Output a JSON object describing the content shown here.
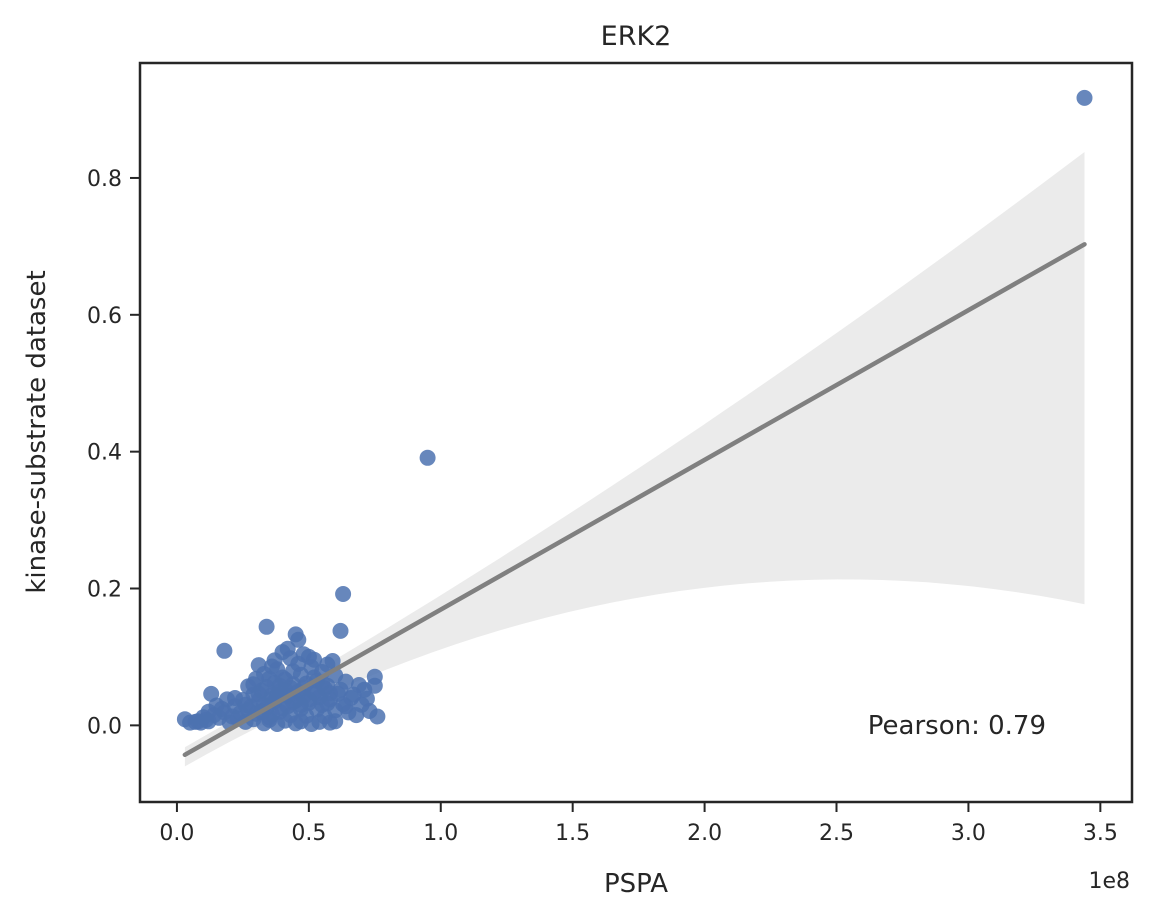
{
  "chart_data": {
    "type": "scatter",
    "title": "ERK2",
    "xlabel": "PSPA",
    "ylabel": "kinase-substrate dataset",
    "x_offset_label": "1e8",
    "x_scale": 100000000,
    "xlim": [
      -0.14,
      3.62
    ],
    "ylim": [
      -0.112,
      0.968
    ],
    "x_ticks": [
      0.0,
      0.5,
      1.0,
      1.5,
      2.0,
      2.5,
      3.0,
      3.5
    ],
    "x_tick_labels": [
      "0.0",
      "0.5",
      "1.0",
      "1.5",
      "2.0",
      "2.5",
      "3.0",
      "3.5"
    ],
    "y_ticks": [
      0.0,
      0.2,
      0.4,
      0.6,
      0.8
    ],
    "y_tick_labels": [
      "0.0",
      "0.2",
      "0.4",
      "0.6",
      "0.8"
    ],
    "annotation": "Pearson: 0.79",
    "grid": false,
    "colors": {
      "points": "#4c72b0",
      "regression_line": "#808080",
      "confidence_band": "#ebebeb",
      "axes": "#262626"
    },
    "regression": {
      "x_start": 0.03,
      "y_start": -0.043,
      "x_end": 3.44,
      "y_end": 0.703,
      "ci_upper_end": 0.838,
      "ci_lower_end": 0.177,
      "ci_upper_start": -0.032,
      "ci_lower_start": -0.06
    },
    "points": [
      [
        3.44,
        0.917
      ],
      [
        0.95,
        0.391
      ],
      [
        0.63,
        0.192
      ],
      [
        0.34,
        0.144
      ],
      [
        0.18,
        0.109
      ],
      [
        0.45,
        0.133
      ],
      [
        0.62,
        0.138
      ],
      [
        0.46,
        0.125
      ],
      [
        0.42,
        0.112
      ],
      [
        0.4,
        0.107
      ],
      [
        0.48,
        0.104
      ],
      [
        0.5,
        0.1
      ],
      [
        0.52,
        0.096
      ],
      [
        0.59,
        0.094
      ],
      [
        0.57,
        0.089
      ],
      [
        0.31,
        0.088
      ],
      [
        0.36,
        0.086
      ],
      [
        0.38,
        0.082
      ],
      [
        0.44,
        0.079
      ],
      [
        0.55,
        0.078
      ],
      [
        0.33,
        0.075
      ],
      [
        0.47,
        0.074
      ],
      [
        0.6,
        0.073
      ],
      [
        0.75,
        0.071
      ],
      [
        0.3,
        0.068
      ],
      [
        0.41,
        0.067
      ],
      [
        0.53,
        0.065
      ],
      [
        0.64,
        0.064
      ],
      [
        0.37,
        0.062
      ],
      [
        0.49,
        0.061
      ],
      [
        0.69,
        0.059
      ],
      [
        0.75,
        0.058
      ],
      [
        0.27,
        0.057
      ],
      [
        0.34,
        0.056
      ],
      [
        0.43,
        0.055
      ],
      [
        0.56,
        0.054
      ],
      [
        0.62,
        0.052
      ],
      [
        0.32,
        0.051
      ],
      [
        0.39,
        0.05
      ],
      [
        0.46,
        0.049
      ],
      [
        0.52,
        0.048
      ],
      [
        0.58,
        0.047
      ],
      [
        0.13,
        0.046
      ],
      [
        0.29,
        0.045
      ],
      [
        0.36,
        0.044
      ],
      [
        0.42,
        0.043
      ],
      [
        0.48,
        0.042
      ],
      [
        0.54,
        0.041
      ],
      [
        0.66,
        0.04
      ],
      [
        0.72,
        0.039
      ],
      [
        0.19,
        0.038
      ],
      [
        0.25,
        0.037
      ],
      [
        0.31,
        0.036
      ],
      [
        0.37,
        0.035
      ],
      [
        0.44,
        0.034
      ],
      [
        0.5,
        0.033
      ],
      [
        0.57,
        0.032
      ],
      [
        0.63,
        0.031
      ],
      [
        0.7,
        0.03
      ],
      [
        0.15,
        0.029
      ],
      [
        0.22,
        0.028
      ],
      [
        0.28,
        0.027
      ],
      [
        0.34,
        0.026
      ],
      [
        0.4,
        0.025
      ],
      [
        0.47,
        0.024
      ],
      [
        0.53,
        0.023
      ],
      [
        0.6,
        0.022
      ],
      [
        0.73,
        0.021
      ],
      [
        0.12,
        0.02
      ],
      [
        0.18,
        0.019
      ],
      [
        0.24,
        0.018
      ],
      [
        0.3,
        0.017
      ],
      [
        0.36,
        0.016
      ],
      [
        0.43,
        0.015
      ],
      [
        0.49,
        0.014
      ],
      [
        0.56,
        0.013
      ],
      [
        0.65,
        0.019
      ],
      [
        0.76,
        0.013
      ],
      [
        0.1,
        0.012
      ],
      [
        0.16,
        0.011
      ],
      [
        0.23,
        0.01
      ],
      [
        0.29,
        0.009
      ],
      [
        0.35,
        0.008
      ],
      [
        0.41,
        0.007
      ],
      [
        0.47,
        0.006
      ],
      [
        0.54,
        0.005
      ],
      [
        0.6,
        0.006
      ],
      [
        0.03,
        0.009
      ],
      [
        0.07,
        0.005
      ],
      [
        0.09,
        0.004
      ],
      [
        0.12,
        0.006
      ],
      [
        0.2,
        0.004
      ],
      [
        0.26,
        0.005
      ],
      [
        0.33,
        0.003
      ],
      [
        0.38,
        0.002
      ],
      [
        0.45,
        0.003
      ],
      [
        0.51,
        0.002
      ],
      [
        0.58,
        0.004
      ],
      [
        0.35,
        0.012
      ],
      [
        0.39,
        0.02
      ],
      [
        0.42,
        0.028
      ],
      [
        0.45,
        0.036
      ],
      [
        0.38,
        0.044
      ],
      [
        0.41,
        0.052
      ],
      [
        0.44,
        0.06
      ],
      [
        0.33,
        0.03
      ],
      [
        0.36,
        0.038
      ],
      [
        0.31,
        0.046
      ],
      [
        0.47,
        0.03
      ],
      [
        0.5,
        0.038
      ],
      [
        0.53,
        0.046
      ],
      [
        0.55,
        0.03
      ],
      [
        0.58,
        0.038
      ],
      [
        0.61,
        0.046
      ],
      [
        0.27,
        0.022
      ],
      [
        0.32,
        0.02
      ],
      [
        0.26,
        0.03
      ],
      [
        0.22,
        0.04
      ],
      [
        0.29,
        0.06
      ],
      [
        0.4,
        0.07
      ],
      [
        0.46,
        0.09
      ],
      [
        0.51,
        0.085
      ],
      [
        0.35,
        0.068
      ],
      [
        0.55,
        0.062
      ],
      [
        0.67,
        0.045
      ],
      [
        0.71,
        0.052
      ],
      [
        0.64,
        0.028
      ],
      [
        0.68,
        0.015
      ],
      [
        0.17,
        0.024
      ],
      [
        0.14,
        0.015
      ],
      [
        0.08,
        0.006
      ],
      [
        0.05,
        0.004
      ],
      [
        0.11,
        0.008
      ],
      [
        0.21,
        0.013
      ],
      [
        0.37,
        0.095
      ],
      [
        0.43,
        0.098
      ],
      [
        0.39,
        0.058
      ],
      [
        0.48,
        0.055
      ],
      [
        0.52,
        0.07
      ],
      [
        0.57,
        0.058
      ]
    ]
  }
}
